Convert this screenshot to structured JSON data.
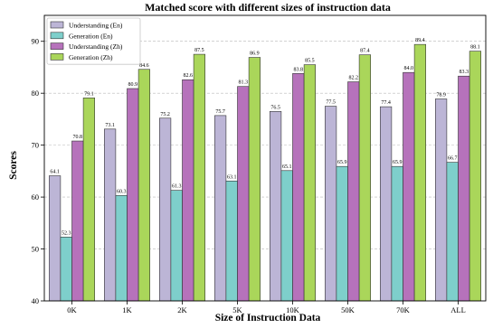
{
  "chart_data": {
    "type": "bar",
    "title": "Matched score with different sizes of instruction data",
    "xlabel": "Size of Instruction Data",
    "ylabel": "Scores",
    "categories": [
      "0K",
      "1K",
      "2K",
      "5K",
      "10K",
      "50K",
      "70K",
      "ALL"
    ],
    "ylim": [
      40,
      95
    ],
    "yticks": [
      40,
      50,
      60,
      70,
      80,
      90
    ],
    "grid": true,
    "legend_position": "top-left",
    "series": [
      {
        "name": "Understanding (En)",
        "color": "#bcb5d6",
        "values": [
          64.1,
          73.1,
          75.2,
          75.7,
          76.5,
          77.5,
          77.4,
          78.9
        ],
        "labels": [
          "64.1",
          "73.1",
          "75.2",
          "75.7",
          "76.5",
          "77.5",
          "77.4",
          "78.9"
        ]
      },
      {
        "name": "Generation (En)",
        "color": "#7ecfcb",
        "values": [
          52.3,
          60.3,
          61.3,
          63.1,
          65.1,
          65.9,
          65.9,
          66.7
        ],
        "labels": [
          "52.3",
          "60.3",
          "61.3",
          "63.1",
          "65.1",
          "65.9",
          "65.9",
          "66.7"
        ]
      },
      {
        "name": "Understanding (Zh)",
        "color": "#b672bb",
        "values": [
          70.8,
          80.9,
          82.6,
          81.3,
          83.8,
          82.2,
          84.0,
          83.3
        ],
        "labels": [
          "70.8",
          "80.9",
          "82.6",
          "81.3",
          "83.8",
          "82.2",
          "84.0",
          "83.3"
        ]
      },
      {
        "name": "Generation (Zh)",
        "color": "#aad65a",
        "values": [
          79.1,
          84.6,
          87.5,
          86.9,
          85.5,
          87.4,
          89.4,
          88.1
        ],
        "labels": [
          "79.1",
          "84.6",
          "87.5",
          "86.9",
          "85.5",
          "87.4",
          "89.4",
          "88.1"
        ]
      }
    ]
  }
}
